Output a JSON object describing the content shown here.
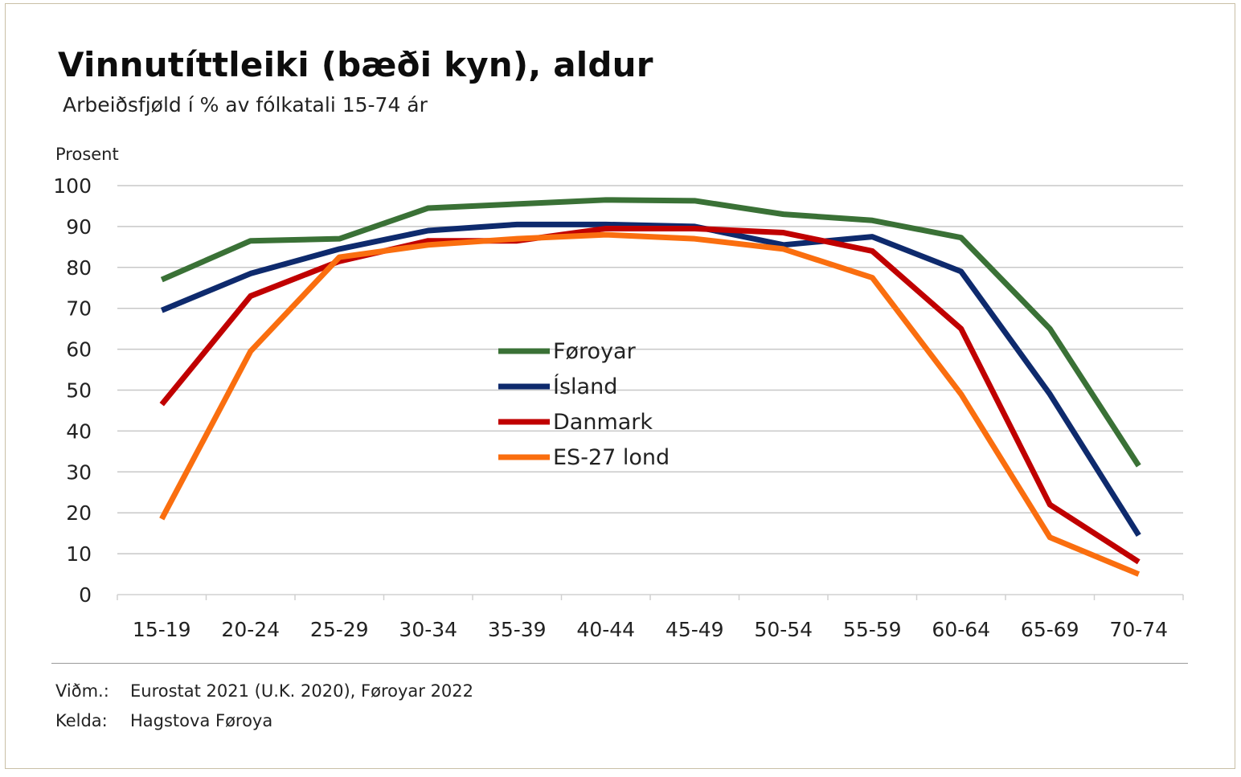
{
  "title": "Vinnutíttleiki (bæði kyn), aldur",
  "subtitle": "Arbeiðsfjøld í % av fólkatali 15-74 ár",
  "footer": {
    "note_label": "Viðm.:",
    "note_text": "Eurostat 2021 (U.K. 2020), Føroyar 2022",
    "source_label": "Kelda:",
    "source_text": "Hagstova Føroya"
  },
  "chart_data": {
    "type": "line",
    "title": "Vinnutíttleiki (bæði kyn), aldur",
    "subtitle": "Arbeiðsfjøld í % av fólkatali 15-74 ár",
    "xlabel": "",
    "ylabel": "Prosent",
    "ylim": [
      0,
      100
    ],
    "yticks": [
      0,
      10,
      20,
      30,
      40,
      50,
      60,
      70,
      80,
      90,
      100
    ],
    "grid": true,
    "legend_position": "center",
    "categories": [
      "15-19",
      "20-24",
      "25-29",
      "30-34",
      "35-39",
      "40-44",
      "45-49",
      "50-54",
      "55-59",
      "60-64",
      "65-69",
      "70-74"
    ],
    "series": [
      {
        "name": "Føroyar",
        "color": "#3a7136",
        "values": [
          77,
          86.5,
          87,
          94.5,
          95.5,
          96.5,
          96.3,
          93,
          91.5,
          87.3,
          65,
          31.5
        ]
      },
      {
        "name": "Ísland",
        "color": "#0e2a6d",
        "values": [
          69.5,
          78.5,
          84.5,
          89,
          90.5,
          90.5,
          90,
          85.5,
          87.5,
          79,
          49,
          14.5
        ]
      },
      {
        "name": "Danmark",
        "color": "#c00000",
        "values": [
          46.5,
          73,
          81.5,
          86.5,
          86.5,
          89.5,
          89.5,
          88.5,
          84,
          65,
          22,
          8
        ]
      },
      {
        "name": "ES-27 lond",
        "color": "#fa6e0f",
        "values": [
          18.5,
          59.5,
          82.5,
          85.5,
          87,
          88,
          87,
          84.5,
          77.5,
          49,
          14,
          5
        ]
      }
    ]
  }
}
